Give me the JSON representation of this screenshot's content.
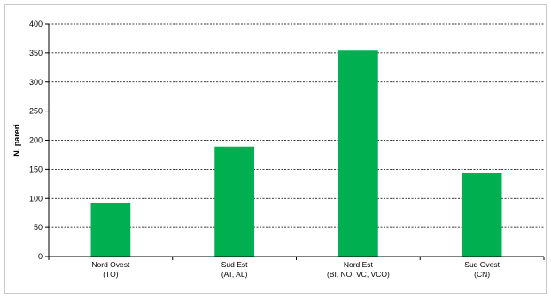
{
  "chart_data": {
    "type": "bar",
    "categories": [
      [
        "Nord Ovest",
        "(TO)"
      ],
      [
        "Sud Est",
        "(AT, AL)"
      ],
      [
        "Nord Est",
        "(BI, NO, VC, VCO)"
      ],
      [
        "Sud Ovest",
        "(CN)"
      ]
    ],
    "values": [
      92,
      189,
      354,
      144
    ],
    "title": "",
    "xlabel": "",
    "ylabel": "N. pareri",
    "ylim": [
      0,
      400
    ],
    "yticks": [
      0,
      50,
      100,
      150,
      200,
      250,
      300,
      350,
      400
    ],
    "grid": "horizontal dashed",
    "legend": "none",
    "colors": {
      "bar": "#00b050",
      "grid": "#000000",
      "axis": "#000000"
    }
  }
}
